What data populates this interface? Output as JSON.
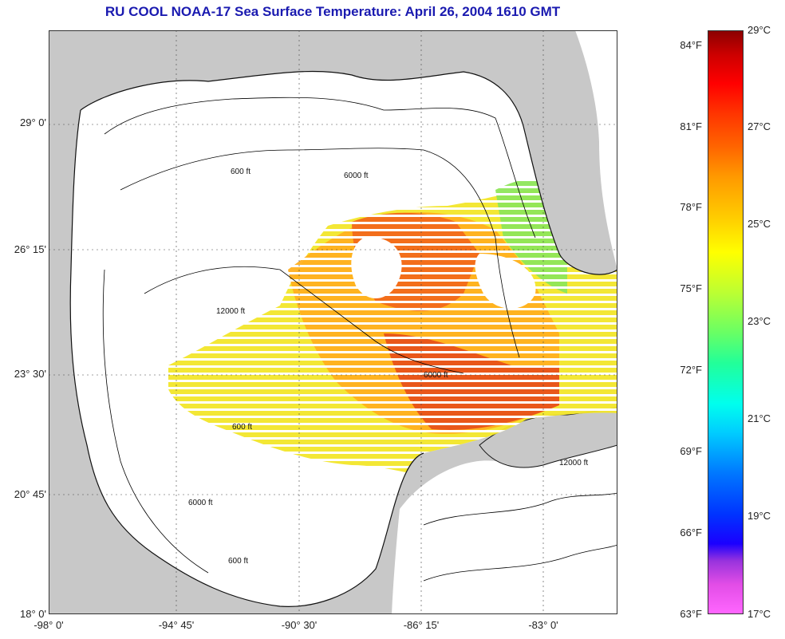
{
  "title": "RU COOL  NOAA-17  Sea Surface Temperature:  April 26, 2004 1610 GMT",
  "map": {
    "lat_labels": [
      "29° 0'",
      "26° 15'",
      "23° 30'",
      "20° 45'",
      "18° 0'"
    ],
    "lon_labels": [
      "-98° 0'",
      "-94° 45'",
      "-90° 30'",
      "-86° 15'",
      "-83° 0'"
    ],
    "contour_labels": [
      "600 ft",
      "6000 ft",
      "12000 ft"
    ],
    "colors": {
      "land": "#c8c8c8",
      "ocean_no_data": "#ffffff",
      "contour": "#000000"
    }
  },
  "colorbar": {
    "fahrenheit_labels": [
      "84°F",
      "81°F",
      "78°F",
      "75°F",
      "72°F",
      "69°F",
      "66°F",
      "63°F"
    ],
    "celsius_labels": [
      "29°C",
      "27°C",
      "25°C",
      "23°C",
      "21°C",
      "19°C",
      "17°C"
    ]
  }
}
